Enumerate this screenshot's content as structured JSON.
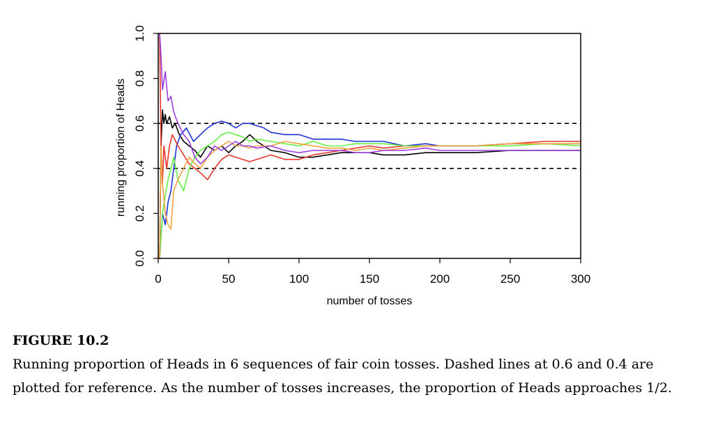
{
  "chart_data": {
    "type": "line",
    "xlabel": "number of tosses",
    "ylabel": "running proportion of Heads",
    "xlim": [
      0,
      300
    ],
    "ylim": [
      0,
      1
    ],
    "xticks": [
      0,
      50,
      100,
      150,
      200,
      250,
      300
    ],
    "yticks": [
      "0.0",
      "0.2",
      "0.4",
      "0.6",
      "0.8",
      "1.0"
    ],
    "reference_lines": [
      0.6,
      0.4
    ],
    "reference_style": "dashed",
    "grid": false,
    "legend": "none",
    "series": [
      {
        "color": "#000000",
        "x": [
          1,
          2,
          3,
          4,
          5,
          6,
          8,
          10,
          12,
          15,
          18,
          22,
          26,
          30,
          35,
          40,
          45,
          50,
          55,
          60,
          65,
          70,
          75,
          80,
          90,
          100,
          110,
          120,
          130,
          140,
          150,
          160,
          175,
          190,
          200,
          225,
          250,
          275,
          300
        ],
        "y": [
          0,
          0.5,
          0.66,
          0.6,
          0.64,
          0.6,
          0.63,
          0.58,
          0.6,
          0.55,
          0.52,
          0.5,
          0.48,
          0.45,
          0.5,
          0.48,
          0.5,
          0.47,
          0.5,
          0.52,
          0.55,
          0.52,
          0.5,
          0.48,
          0.47,
          0.45,
          0.45,
          0.46,
          0.47,
          0.47,
          0.47,
          0.46,
          0.46,
          0.47,
          0.47,
          0.47,
          0.48,
          0.48,
          0.48
        ]
      },
      {
        "color": "#1f32d4",
        "x": [
          1,
          3,
          5,
          7,
          9,
          11,
          13,
          16,
          20,
          25,
          30,
          35,
          40,
          45,
          50,
          55,
          60,
          65,
          70,
          75,
          80,
          90,
          100,
          110,
          120,
          130,
          140,
          150,
          160,
          175,
          190,
          200,
          225,
          250,
          275,
          300
        ],
        "y": [
          0,
          0.2,
          0.15,
          0.25,
          0.3,
          0.4,
          0.5,
          0.55,
          0.58,
          0.52,
          0.55,
          0.58,
          0.6,
          0.61,
          0.6,
          0.58,
          0.6,
          0.6,
          0.59,
          0.58,
          0.56,
          0.55,
          0.55,
          0.53,
          0.53,
          0.53,
          0.52,
          0.52,
          0.52,
          0.5,
          0.51,
          0.5,
          0.5,
          0.51,
          0.51,
          0.51
        ]
      },
      {
        "color": "#e8362a",
        "x": [
          1,
          2,
          3,
          4,
          6,
          8,
          10,
          14,
          18,
          22,
          26,
          30,
          35,
          40,
          45,
          50,
          55,
          60,
          65,
          70,
          80,
          90,
          100,
          110,
          120,
          130,
          140,
          150,
          160,
          175,
          190,
          200,
          225,
          250,
          275,
          300
        ],
        "y": [
          1,
          0.5,
          0.33,
          0.5,
          0.4,
          0.5,
          0.55,
          0.5,
          0.46,
          0.42,
          0.4,
          0.38,
          0.35,
          0.4,
          0.44,
          0.46,
          0.45,
          0.44,
          0.43,
          0.44,
          0.46,
          0.44,
          0.44,
          0.46,
          0.47,
          0.48,
          0.49,
          0.5,
          0.49,
          0.5,
          0.5,
          0.5,
          0.5,
          0.51,
          0.52,
          0.52
        ]
      },
      {
        "color": "#66f044",
        "x": [
          1,
          3,
          5,
          7,
          9,
          11,
          14,
          18,
          22,
          26,
          30,
          35,
          40,
          45,
          50,
          55,
          60,
          65,
          70,
          80,
          90,
          100,
          110,
          120,
          130,
          140,
          150,
          160,
          175,
          190,
          200,
          225,
          250,
          275,
          300
        ],
        "y": [
          0,
          0.2,
          0.28,
          0.35,
          0.4,
          0.45,
          0.35,
          0.3,
          0.4,
          0.45,
          0.48,
          0.5,
          0.52,
          0.55,
          0.56,
          0.55,
          0.54,
          0.52,
          0.53,
          0.52,
          0.51,
          0.5,
          0.52,
          0.5,
          0.5,
          0.51,
          0.51,
          0.51,
          0.5,
          0.5,
          0.5,
          0.5,
          0.5,
          0.51,
          0.5
        ]
      },
      {
        "color": "#f0a040",
        "x": [
          1,
          2,
          3,
          5,
          7,
          9,
          11,
          14,
          18,
          22,
          26,
          30,
          35,
          40,
          45,
          50,
          55,
          60,
          65,
          70,
          80,
          90,
          100,
          110,
          120,
          130,
          140,
          150,
          160,
          175,
          190,
          200,
          225,
          250,
          275,
          300
        ],
        "y": [
          0,
          0.5,
          0.33,
          0.2,
          0.15,
          0.13,
          0.3,
          0.35,
          0.4,
          0.45,
          0.42,
          0.4,
          0.45,
          0.48,
          0.5,
          0.52,
          0.5,
          0.5,
          0.49,
          0.5,
          0.5,
          0.52,
          0.51,
          0.5,
          0.49,
          0.49,
          0.48,
          0.49,
          0.48,
          0.49,
          0.5,
          0.5,
          0.5,
          0.51,
          0.51,
          0.51
        ]
      },
      {
        "color": "#9a3ee0",
        "x": [
          1,
          2,
          3,
          5,
          7,
          9,
          11,
          14,
          18,
          22,
          26,
          30,
          35,
          40,
          45,
          50,
          55,
          60,
          65,
          70,
          80,
          90,
          100,
          110,
          120,
          130,
          140,
          150,
          160,
          175,
          190,
          200,
          225,
          250,
          275,
          300
        ],
        "y": [
          1,
          0.9,
          0.75,
          0.83,
          0.7,
          0.72,
          0.65,
          0.6,
          0.55,
          0.52,
          0.45,
          0.42,
          0.45,
          0.5,
          0.48,
          0.5,
          0.52,
          0.5,
          0.5,
          0.49,
          0.5,
          0.48,
          0.47,
          0.48,
          0.48,
          0.48,
          0.47,
          0.47,
          0.48,
          0.48,
          0.49,
          0.48,
          0.48,
          0.48,
          0.48,
          0.48
        ]
      }
    ]
  },
  "caption": {
    "label": "FIGURE 10.2",
    "text": "Running proportion of Heads in 6 sequences of fair coin tosses. Dashed lines at 0.6 and 0.4 are plotted for reference. As the number of tosses increases, the proportion of Heads approaches 1/2."
  }
}
